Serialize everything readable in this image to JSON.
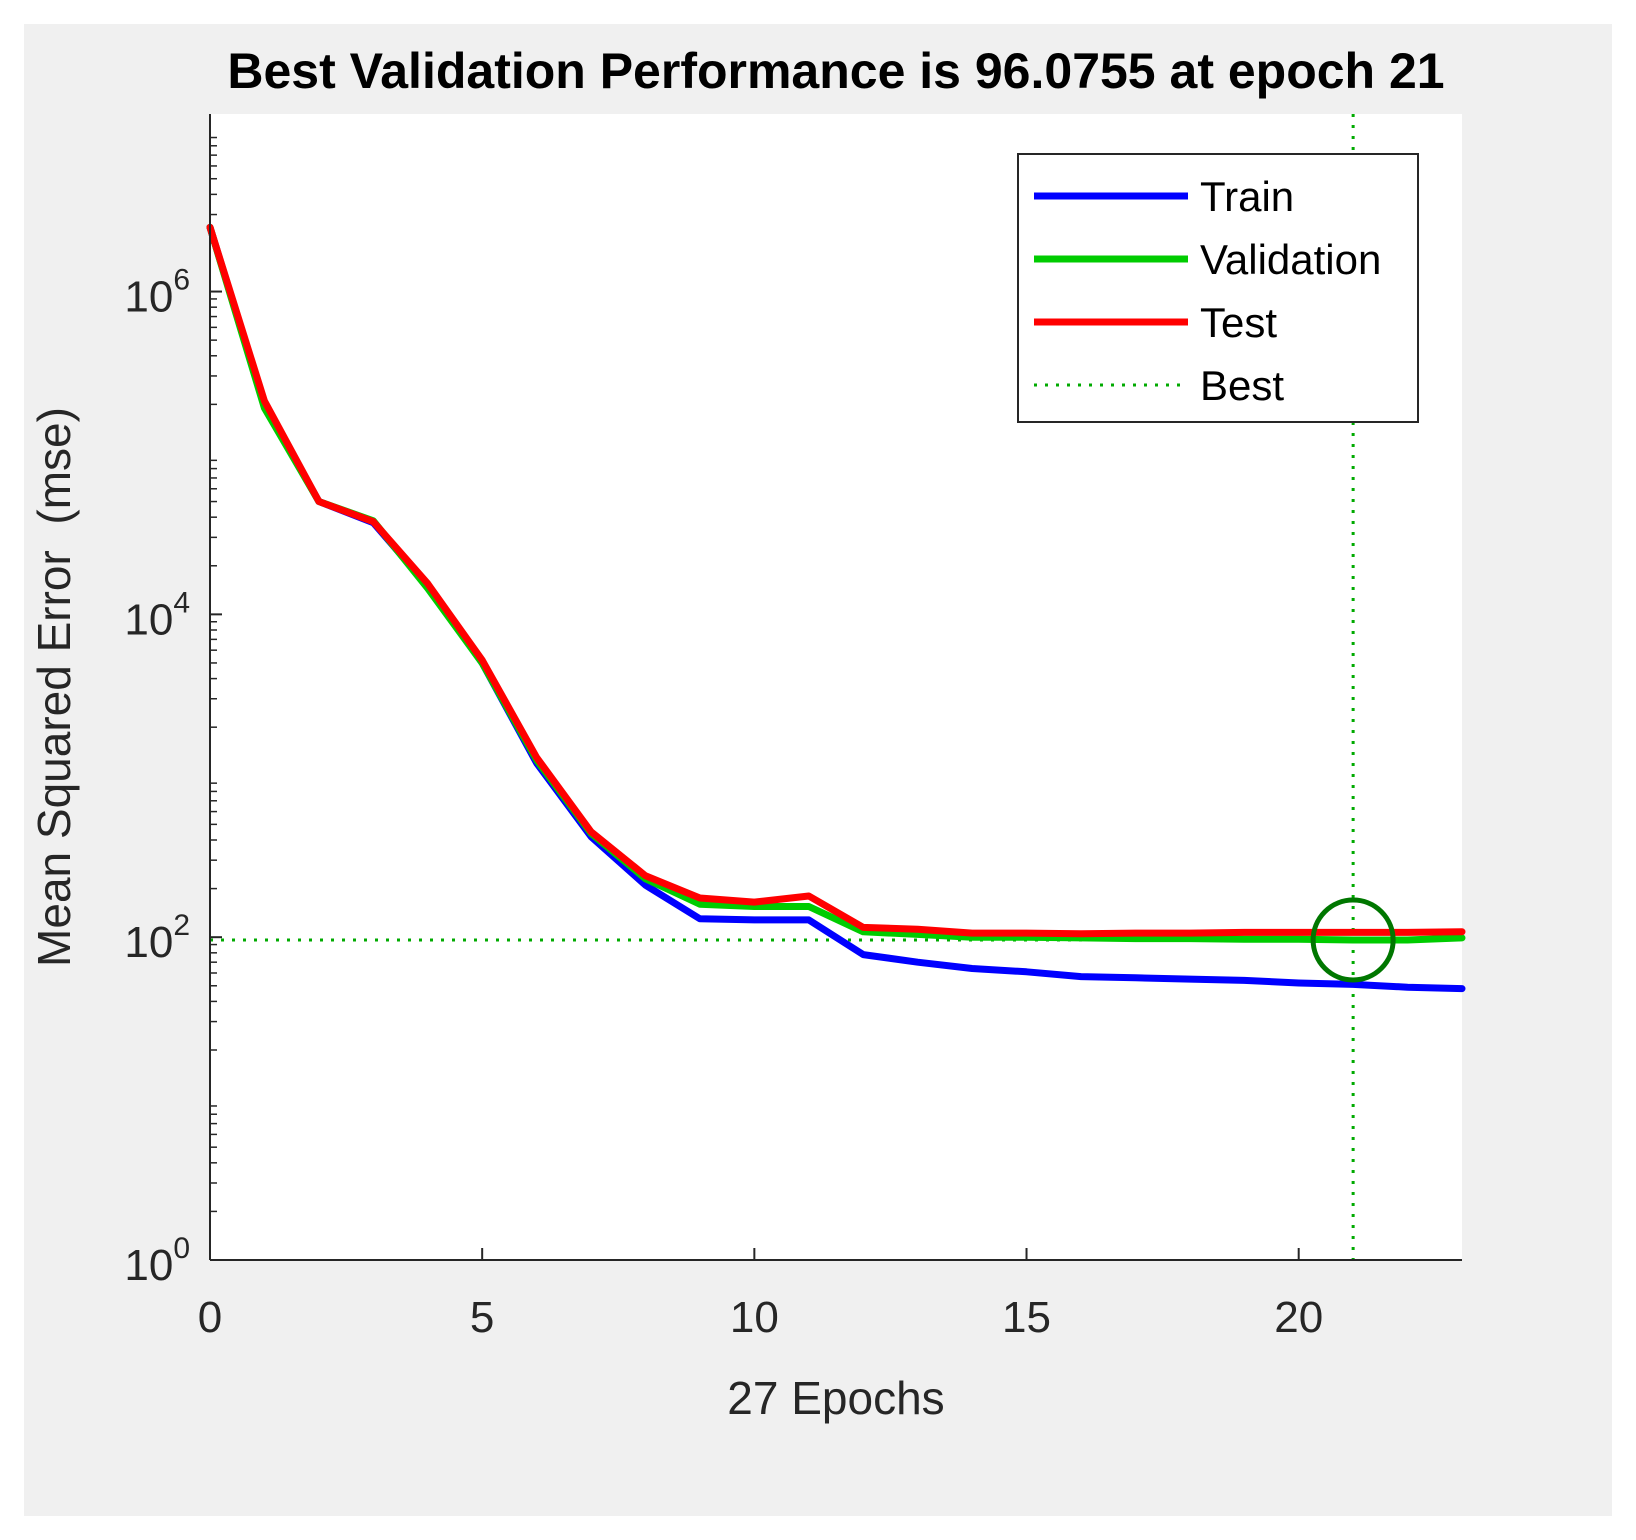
{
  "chart_data": {
    "type": "line",
    "title": "Best Validation Performance is 96.0755 at epoch 21",
    "xlabel": "27 Epochs",
    "ylabel": "Mean Squared Error  (mse)",
    "xlim": [
      0,
      23
    ],
    "ylim": [
      1,
      10000000
    ],
    "yscale": "log",
    "xticks": [
      0,
      5,
      10,
      15,
      20
    ],
    "xtick_labels": [
      "0",
      "5",
      "10",
      "15",
      "20"
    ],
    "yticks": [
      {
        "value": 1,
        "base": "10",
        "exp": "0"
      },
      {
        "value": 100,
        "base": "10",
        "exp": "2"
      },
      {
        "value": 10000,
        "base": "10",
        "exp": "4"
      },
      {
        "value": 1000000,
        "base": "10",
        "exp": "6"
      }
    ],
    "x": [
      0,
      1,
      2,
      3,
      4,
      5,
      6,
      7,
      8,
      9,
      10,
      11,
      12,
      13,
      14,
      15,
      16,
      17,
      18,
      19,
      20,
      21,
      22,
      23
    ],
    "series": [
      {
        "name": "Train",
        "color": "#0000ff",
        "values": [
          2500000,
          200000,
          50000,
          37000,
          15000,
          5000,
          1200,
          420,
          210,
          130,
          128,
          128,
          78,
          70,
          64,
          61,
          57,
          56,
          55,
          54,
          52,
          51,
          49,
          48
        ]
      },
      {
        "name": "Validation",
        "color": "#00cc00",
        "values": [
          2500000,
          190000,
          50000,
          38000,
          14500,
          5000,
          1250,
          440,
          230,
          160,
          155,
          155,
          108,
          104,
          100,
          100,
          99,
          98,
          98,
          97,
          97,
          96.0755,
          96,
          99
        ]
      },
      {
        "name": "Test",
        "color": "#ff0000",
        "values": [
          2500000,
          210000,
          50000,
          37500,
          15500,
          5200,
          1300,
          450,
          240,
          175,
          165,
          180,
          115,
          112,
          106,
          106,
          105,
          106,
          106,
          107,
          107,
          107,
          107,
          108
        ]
      }
    ],
    "best": {
      "name": "Best",
      "epoch": 21,
      "value": 96.0755,
      "color": "#00aa00"
    },
    "legend": {
      "position": "top-right",
      "entries": [
        "Train",
        "Validation",
        "Test",
        "Best"
      ]
    },
    "grid": false
  }
}
